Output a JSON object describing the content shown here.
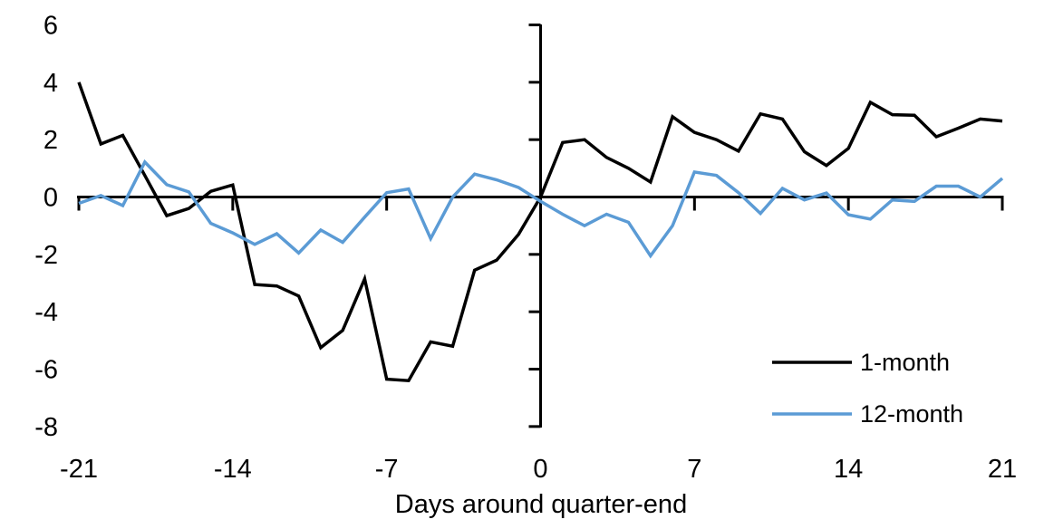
{
  "chart_data": {
    "type": "line",
    "title": "",
    "xlabel": "Days around quarter-end",
    "ylabel": "",
    "x": [
      -21,
      -20,
      -19,
      -18,
      -17,
      -16,
      -15,
      -14,
      -13,
      -12,
      -11,
      -10,
      -9,
      -8,
      -7,
      -6,
      -5,
      -4,
      -3,
      -2,
      -1,
      0,
      1,
      2,
      3,
      4,
      5,
      6,
      7,
      8,
      9,
      10,
      11,
      12,
      13,
      14,
      15,
      16,
      17,
      18,
      19,
      20,
      21
    ],
    "series": [
      {
        "name": "1-month",
        "color": "#000000",
        "values": [
          4.0,
          1.85,
          2.15,
          0.75,
          -0.65,
          -0.4,
          0.2,
          0.42,
          -3.05,
          -3.1,
          -3.45,
          -5.25,
          -4.65,
          -2.85,
          -6.35,
          -6.4,
          -5.05,
          -5.2,
          -2.55,
          -2.2,
          -1.3,
          0.0,
          1.9,
          2.0,
          1.38,
          1.0,
          0.52,
          2.8,
          2.25,
          2.0,
          1.6,
          2.9,
          2.72,
          1.58,
          1.1,
          1.7,
          3.3,
          2.87,
          2.85,
          2.1,
          2.4,
          2.72,
          2.65
        ]
      },
      {
        "name": "12-month",
        "color": "#5B9BD5",
        "values": [
          -0.22,
          0.05,
          -0.3,
          1.22,
          0.43,
          0.18,
          -0.92,
          -1.25,
          -1.65,
          -1.28,
          -1.95,
          -1.15,
          -1.58,
          -0.7,
          0.15,
          0.28,
          -1.45,
          0.0,
          0.8,
          0.6,
          0.33,
          -0.15,
          -0.6,
          -1.0,
          -0.6,
          -0.88,
          -2.05,
          -1.0,
          0.87,
          0.75,
          0.15,
          -0.57,
          0.3,
          -0.1,
          0.14,
          -0.62,
          -0.77,
          -0.1,
          -0.15,
          0.38,
          0.38,
          0.0,
          0.65
        ]
      }
    ],
    "xlim": [
      -21,
      21
    ],
    "ylim": [
      -8,
      6
    ],
    "x_ticks": [
      -21,
      -14,
      -7,
      0,
      7,
      14,
      21
    ],
    "y_ticks": [
      6,
      4,
      2,
      0,
      -2,
      -4,
      -6,
      -8
    ],
    "grid": false,
    "legend_position": "inside-bottom-right",
    "axis_color": "#000000",
    "background": "#ffffff"
  }
}
